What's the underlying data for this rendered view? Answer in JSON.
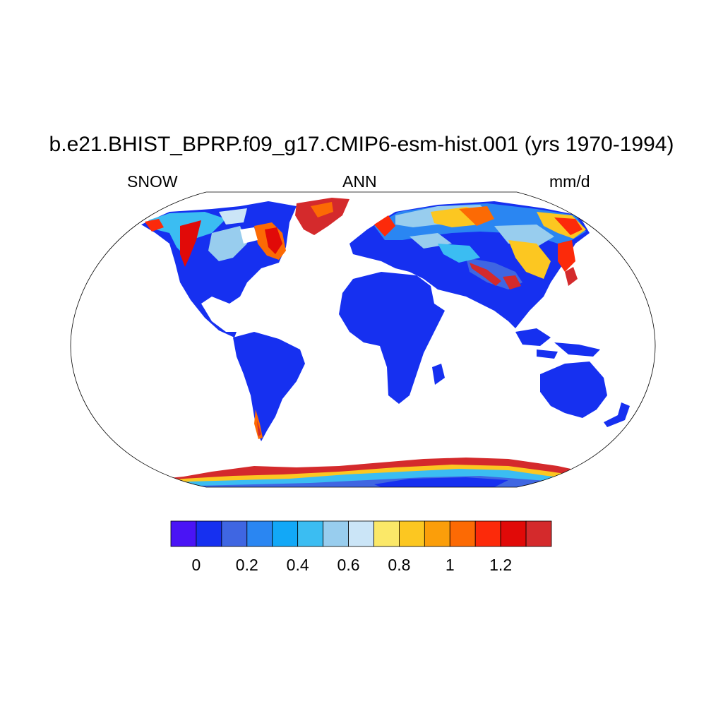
{
  "title": "b.e21.BHIST_BPRP.f09_g17.CMIP6-esm-hist.001 (yrs 1970-1994)",
  "subtitle_left": "SNOW",
  "subtitle_center": "ANN",
  "subtitle_right": "mm/d",
  "colors": {
    "land_low": "#1630f0",
    "ocean": "#ffffff",
    "coast": "#000000"
  },
  "colorbar": {
    "colors": [
      "#4a14f5",
      "#1630f0",
      "#3f66e2",
      "#2a86f2",
      "#12a8f7",
      "#3bbdf2",
      "#98cdee",
      "#cbe5f7",
      "#fbe868",
      "#fcc721",
      "#fb9e0a",
      "#fc6a04",
      "#fc2a0a",
      "#e10a08",
      "#d42a2c"
    ],
    "tick_labels": [
      "0",
      "0.2",
      "0.4",
      "0.6",
      "0.8",
      "1",
      "1.2"
    ]
  }
}
